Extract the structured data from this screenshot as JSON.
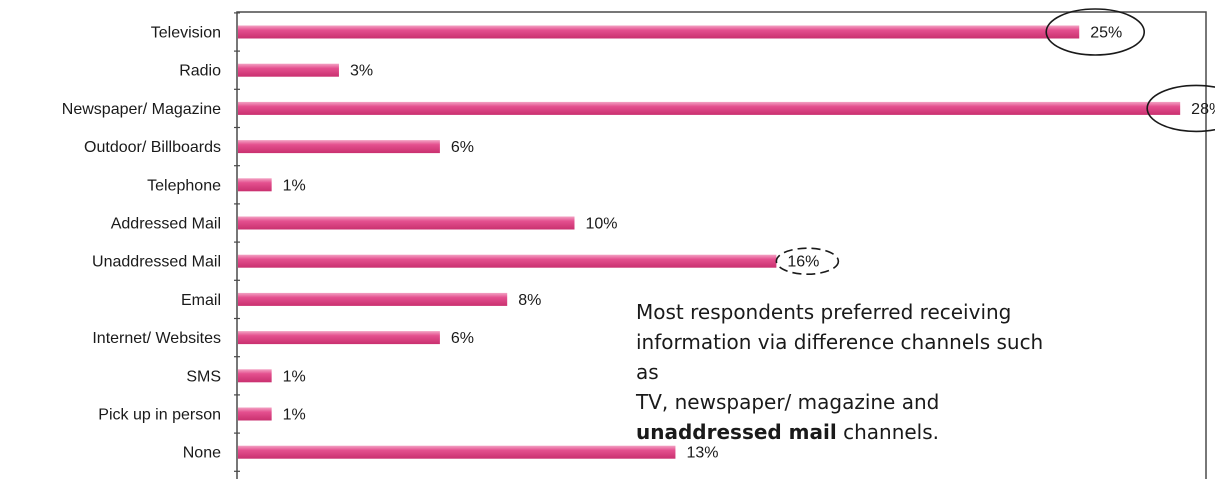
{
  "chart_data": {
    "type": "bar",
    "orientation": "horizontal",
    "categories": [
      "Television",
      "Radio",
      "Newspaper/ Magazine",
      "Outdoor/ Billboards",
      "Telephone",
      "Addressed Mail",
      "Unaddressed Mail",
      "Email",
      "Internet/ Websites",
      "SMS",
      "Pick up in person",
      "None"
    ],
    "values": [
      25,
      3,
      28,
      6,
      1,
      10,
      16,
      8,
      6,
      1,
      1,
      13
    ],
    "value_labels": [
      "25%",
      "3%",
      "28%",
      "6%",
      "1%",
      "10%",
      "16%",
      "8%",
      "6%",
      "1%",
      "1%",
      "13%"
    ],
    "xlim": [
      0,
      28.5
    ],
    "bar_color": "#e4508f",
    "grid": false,
    "legend": "none",
    "highlighted": [
      {
        "category": "Television",
        "style": "solid-ellipse"
      },
      {
        "category": "Newspaper/ Magazine",
        "style": "solid-ellipse"
      },
      {
        "category": "Unaddressed Mail",
        "style": "dashed-ellipse"
      }
    ],
    "title": "",
    "xlabel": "",
    "ylabel": ""
  },
  "annotation": {
    "line1": "Most respondents preferred receiving",
    "line2": "information via difference channels such as",
    "line3": "TV, newspaper/ magazine and",
    "bold": "unaddressed mail",
    "tail": " channels."
  }
}
